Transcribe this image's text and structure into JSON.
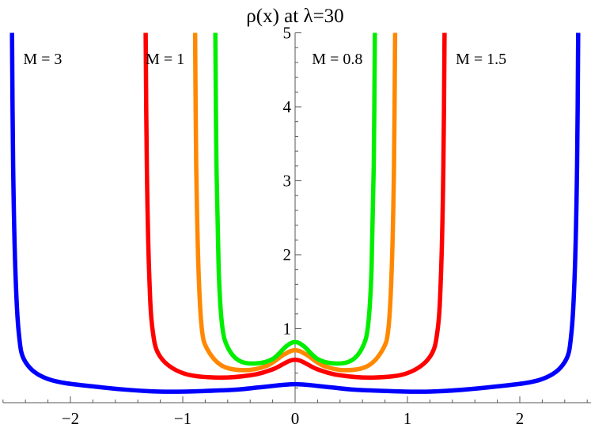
{
  "chart_data": {
    "type": "line",
    "title": "ρ(x) at λ=30",
    "xlim": [
      -2.6,
      2.65
    ],
    "ylim": [
      0,
      5
    ],
    "x_ticks": [
      -2,
      -1,
      0,
      1,
      2
    ],
    "x_tick_labels": [
      "−2",
      "−1",
      "0",
      "1",
      "2"
    ],
    "y_ticks": [
      1,
      2,
      3,
      4,
      5
    ],
    "y_tick_labels": [
      "1",
      "2",
      "3",
      "4",
      "5"
    ],
    "grid": false,
    "series": [
      {
        "name": "M = 3",
        "color": "#0000ff",
        "edge": 2.52,
        "x": [
          -2.52,
          -2.51,
          -2.49,
          -2.46,
          -2.4,
          -2.2,
          -1.8,
          -1.2,
          -0.6,
          -0.3,
          0,
          0.3,
          0.6,
          1.2,
          1.8,
          2.2,
          2.4,
          2.46,
          2.49,
          2.51,
          2.52
        ],
        "y": [
          5.0,
          3.2,
          1.8,
          0.95,
          0.55,
          0.32,
          0.22,
          0.15,
          0.17,
          0.21,
          0.25,
          0.21,
          0.17,
          0.15,
          0.22,
          0.32,
          0.55,
          0.95,
          1.8,
          3.2,
          5.0
        ]
      },
      {
        "name": "M = 1.5",
        "color": "#ff0000",
        "edge": 1.33,
        "x": [
          -1.33,
          -1.32,
          -1.3,
          -1.27,
          -1.2,
          -1.0,
          -0.7,
          -0.4,
          -0.2,
          0,
          0.2,
          0.4,
          0.7,
          1.0,
          1.2,
          1.27,
          1.3,
          1.32,
          1.33
        ],
        "y": [
          5.0,
          3.2,
          1.8,
          1.0,
          0.62,
          0.4,
          0.34,
          0.37,
          0.45,
          0.58,
          0.45,
          0.37,
          0.34,
          0.4,
          0.62,
          1.0,
          1.8,
          3.2,
          5.0
        ]
      },
      {
        "name": "M = 1",
        "color": "#ff8800",
        "edge": 0.89,
        "x": [
          -0.89,
          -0.88,
          -0.86,
          -0.83,
          -0.78,
          -0.65,
          -0.45,
          -0.25,
          -0.1,
          0,
          0.1,
          0.25,
          0.45,
          0.65,
          0.78,
          0.83,
          0.86,
          0.88,
          0.89
        ],
        "y": [
          5.0,
          3.2,
          1.8,
          1.0,
          0.72,
          0.5,
          0.44,
          0.5,
          0.65,
          0.71,
          0.65,
          0.5,
          0.44,
          0.5,
          0.72,
          1.0,
          1.8,
          3.2,
          5.0
        ]
      },
      {
        "name": "M = 0.8",
        "color": "#00ee00",
        "edge": 0.71,
        "x": [
          -0.71,
          -0.7,
          -0.68,
          -0.65,
          -0.6,
          -0.5,
          -0.35,
          -0.2,
          -0.08,
          0,
          0.08,
          0.2,
          0.35,
          0.5,
          0.6,
          0.65,
          0.68,
          0.7,
          0.71
        ],
        "y": [
          5.0,
          3.2,
          1.8,
          1.05,
          0.75,
          0.57,
          0.53,
          0.59,
          0.76,
          0.82,
          0.76,
          0.59,
          0.53,
          0.57,
          0.75,
          1.05,
          1.8,
          3.2,
          5.0
        ]
      }
    ],
    "annotations": [
      {
        "text": "M = 3",
        "x": -2.42,
        "y": 4.65
      },
      {
        "text": "M = 1",
        "x": -1.33,
        "y": 4.65
      },
      {
        "text": "M = 0.8",
        "x": 0.15,
        "y": 4.65
      },
      {
        "text": "M = 1.5",
        "x": 1.43,
        "y": 4.65
      }
    ]
  }
}
